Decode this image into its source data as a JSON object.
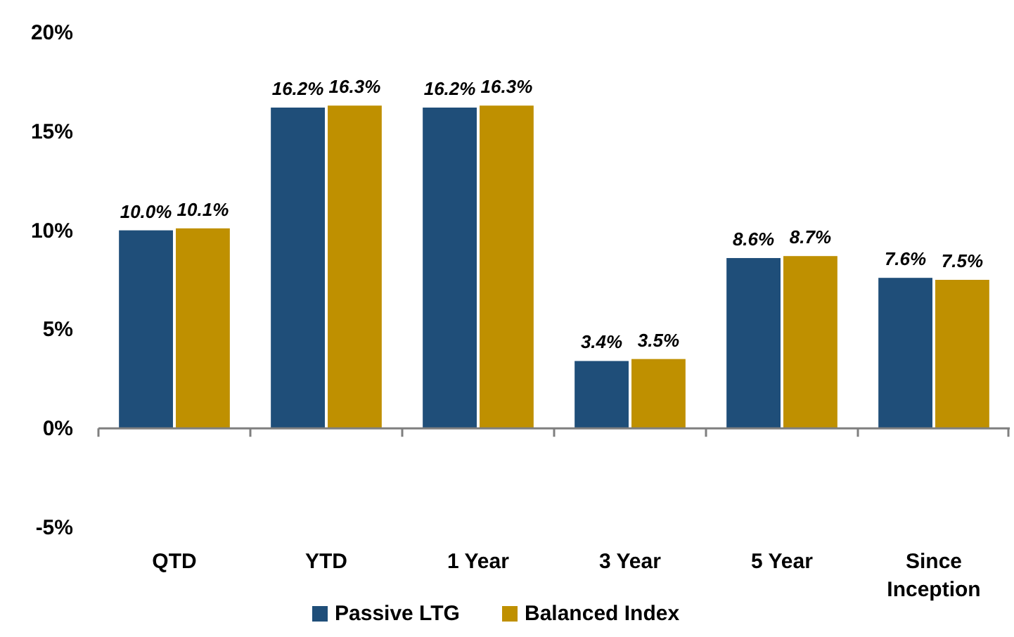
{
  "chart_data": {
    "type": "bar",
    "categories": [
      "QTD",
      "YTD",
      "1 Year",
      "3 Year",
      "5 Year",
      "Since Inception"
    ],
    "series": [
      {
        "name": "Passive LTG",
        "color": "#1f4e79",
        "values": [
          10.0,
          16.2,
          16.2,
          3.4,
          8.6,
          7.6
        ],
        "value_labels": [
          "10.0%",
          "16.2%",
          "16.2%",
          "3.4%",
          "8.6%",
          "7.6%"
        ]
      },
      {
        "name": "Balanced Index",
        "color": "#bf9000",
        "values": [
          10.1,
          16.3,
          16.3,
          3.5,
          8.7,
          7.5
        ],
        "value_labels": [
          "10.1%",
          "16.3%",
          "16.3%",
          "3.5%",
          "8.7%",
          "7.5%"
        ]
      }
    ],
    "ylim": [
      -5,
      20
    ],
    "yticks": [
      {
        "value": -5,
        "label": "-5%"
      },
      {
        "value": 0,
        "label": "0%"
      },
      {
        "value": 5,
        "label": "5%"
      },
      {
        "value": 10,
        "label": "10%"
      },
      {
        "value": 15,
        "label": "15%"
      },
      {
        "value": 20,
        "label": "20%"
      }
    ],
    "legend": "bottom"
  }
}
